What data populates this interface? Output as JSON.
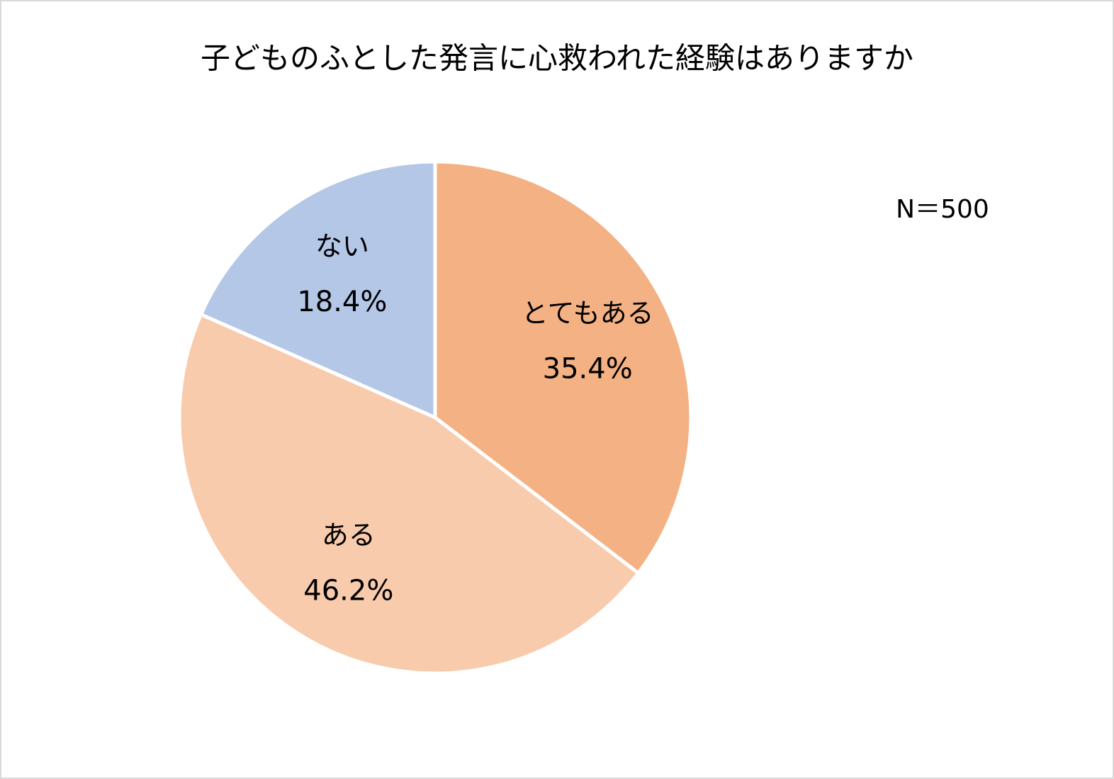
{
  "chart_data": {
    "type": "pie",
    "title": "子どものふとした発言に心救われた経験はありますか",
    "annotation": "N＝500",
    "categories": [
      "とてもある",
      "ある",
      "ない"
    ],
    "values": [
      35.4,
      46.2,
      18.4
    ],
    "value_labels": [
      "35.4%",
      "46.2%",
      "18.4%"
    ],
    "colors": [
      "#f4b183",
      "#f8cbad",
      "#b4c7e7"
    ]
  }
}
